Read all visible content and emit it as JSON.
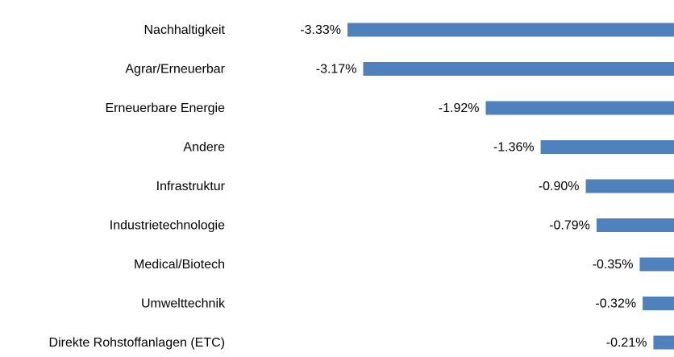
{
  "chart_data": {
    "type": "bar",
    "orientation": "horizontal",
    "categories": [
      "Nachhaltigkeit",
      "Agrar/Erneuerbar",
      "Erneuerbare Energie",
      "Andere",
      "Infrastruktur",
      "Industrietechnologie",
      "Medical/Biotech",
      "Umwelttechnik",
      "Direkte Rohstoffanlagen (ETC)"
    ],
    "values": [
      -3.33,
      -3.17,
      -1.92,
      -1.36,
      -0.9,
      -0.79,
      -0.35,
      -0.32,
      -0.21
    ],
    "value_labels": [
      "-3.33%",
      "-3.17%",
      "-1.92%",
      "-1.36%",
      "-0.90%",
      "-0.79%",
      "-0.35%",
      "-0.32%",
      "-0.21%"
    ],
    "color": "#4f81bd"
  }
}
